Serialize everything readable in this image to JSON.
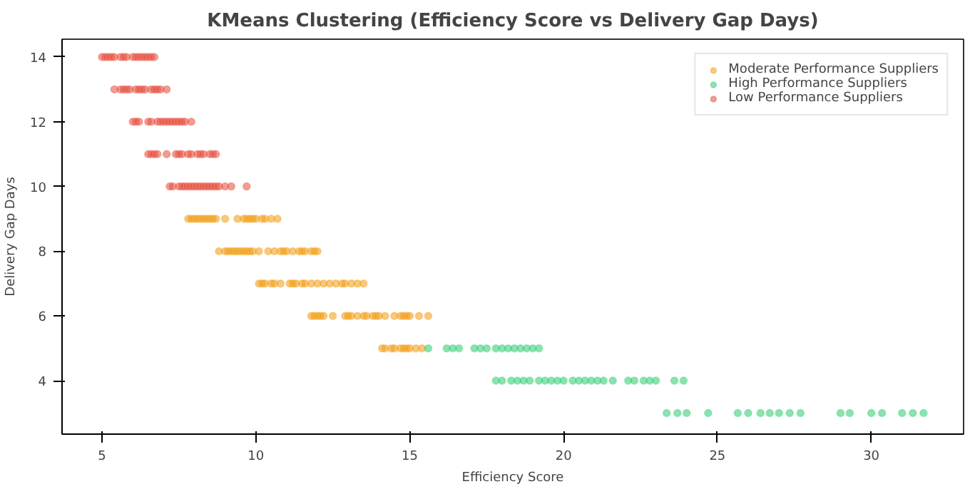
{
  "chart_data": {
    "type": "scatter",
    "title": "KMeans Clustering (Efficiency Score vs Delivery Gap Days)",
    "xlabel": "Efficiency Score",
    "ylabel": "Delivery Gap Days",
    "xlim": [
      3.7,
      33.0
    ],
    "ylim": [
      2.35,
      14.55
    ],
    "xticks": [
      5,
      10,
      15,
      20,
      25,
      30
    ],
    "yticks": [
      4,
      6,
      8,
      10,
      12,
      14
    ],
    "grid": false,
    "legend": "top right",
    "marker": "circle",
    "series": [
      {
        "name": "Moderate Performance Suppliers",
        "color": "#f39c12",
        "x": [
          7.8,
          7.9,
          8.0,
          8.1,
          8.2,
          8.3,
          8.4,
          8.5,
          8.6,
          8.7,
          9.0,
          9.4,
          9.6,
          9.7,
          9.8,
          9.9,
          10.0,
          10.2,
          10.3,
          10.5,
          10.7,
          8.8,
          9.0,
          9.1,
          9.2,
          9.3,
          9.4,
          9.5,
          9.6,
          9.7,
          9.8,
          9.9,
          10.1,
          10.4,
          10.6,
          10.8,
          10.9,
          11.0,
          11.2,
          11.4,
          11.5,
          11.6,
          11.8,
          11.9,
          12.0,
          10.1,
          10.2,
          10.3,
          10.5,
          10.6,
          10.8,
          11.1,
          11.2,
          11.3,
          11.5,
          11.6,
          11.8,
          12.0,
          12.2,
          12.4,
          12.6,
          12.8,
          12.9,
          13.1,
          13.3,
          13.5,
          11.8,
          11.9,
          12.0,
          12.1,
          12.2,
          12.5,
          12.9,
          13.0,
          13.1,
          13.3,
          13.5,
          13.6,
          13.8,
          13.9,
          14.0,
          14.2,
          14.5,
          14.7,
          14.8,
          14.9,
          15.0,
          15.3,
          15.6,
          14.1,
          14.2,
          14.4,
          14.5,
          14.7,
          14.8,
          14.9,
          15.0,
          15.2,
          15.4
        ],
        "values": [
          9,
          9,
          9,
          9,
          9,
          9,
          9,
          9,
          9,
          9,
          9,
          9,
          9,
          9,
          9,
          9,
          9,
          9,
          9,
          9,
          9,
          8,
          8,
          8,
          8,
          8,
          8,
          8,
          8,
          8,
          8,
          8,
          8,
          8,
          8,
          8,
          8,
          8,
          8,
          8,
          8,
          8,
          8,
          8,
          8,
          7,
          7,
          7,
          7,
          7,
          7,
          7,
          7,
          7,
          7,
          7,
          7,
          7,
          7,
          7,
          7,
          7,
          7,
          7,
          7,
          7,
          6,
          6,
          6,
          6,
          6,
          6,
          6,
          6,
          6,
          6,
          6,
          6,
          6,
          6,
          6,
          6,
          6,
          6,
          6,
          6,
          6,
          6,
          6,
          5,
          5,
          5,
          5,
          5,
          5,
          5,
          5,
          5,
          5
        ]
      },
      {
        "name": "High Performance Suppliers",
        "color": "#2ecc71",
        "x": [
          15.6,
          16.2,
          16.4,
          16.6,
          17.1,
          17.3,
          17.5,
          17.8,
          18.0,
          18.2,
          18.4,
          18.6,
          18.8,
          19.0,
          19.2,
          17.8,
          18.0,
          18.3,
          18.5,
          18.7,
          18.9,
          19.2,
          19.4,
          19.6,
          19.8,
          20.0,
          20.3,
          20.5,
          20.7,
          20.9,
          21.1,
          21.3,
          21.6,
          22.1,
          22.3,
          22.6,
          22.8,
          23.0,
          23.6,
          23.9,
          23.35,
          23.7,
          24.0,
          24.7,
          25.66,
          26.0,
          26.4,
          26.7,
          27.0,
          27.35,
          27.7,
          29.0,
          29.3,
          30.0,
          30.35,
          31.0,
          31.35,
          31.7
        ],
        "values": [
          5,
          5,
          5,
          5,
          5,
          5,
          5,
          5,
          5,
          5,
          5,
          5,
          5,
          5,
          5,
          4,
          4,
          4,
          4,
          4,
          4,
          4,
          4,
          4,
          4,
          4,
          4,
          4,
          4,
          4,
          4,
          4,
          4,
          4,
          4,
          4,
          4,
          4,
          4,
          4,
          3,
          3,
          3,
          3,
          3,
          3,
          3,
          3,
          3,
          3,
          3,
          3,
          3,
          3,
          3,
          3,
          3,
          3
        ]
      },
      {
        "name": "Low Performance Suppliers",
        "color": "#e74c3c",
        "x": [
          5.0,
          5.1,
          5.2,
          5.3,
          5.4,
          5.6,
          5.7,
          5.8,
          6.0,
          6.1,
          6.2,
          6.3,
          6.4,
          6.5,
          6.6,
          6.7,
          5.4,
          5.6,
          5.7,
          5.8,
          5.9,
          6.1,
          6.2,
          6.3,
          6.4,
          6.6,
          6.7,
          6.8,
          6.9,
          7.1,
          6.0,
          6.1,
          6.2,
          6.5,
          6.6,
          6.8,
          6.9,
          7.0,
          7.1,
          7.2,
          7.3,
          7.4,
          7.5,
          7.6,
          7.7,
          7.9,
          6.5,
          6.6,
          6.7,
          6.8,
          7.1,
          7.4,
          7.5,
          7.6,
          7.8,
          7.9,
          8.1,
          8.2,
          8.3,
          8.5,
          8.6,
          8.7,
          7.2,
          7.3,
          7.5,
          7.6,
          7.7,
          7.8,
          7.9,
          8.0,
          8.1,
          8.2,
          8.3,
          8.4,
          8.5,
          8.6,
          8.7,
          8.8,
          9.0,
          9.2,
          9.7
        ],
        "values": [
          14,
          14,
          14,
          14,
          14,
          14,
          14,
          14,
          14,
          14,
          14,
          14,
          14,
          14,
          14,
          14,
          13,
          13,
          13,
          13,
          13,
          13,
          13,
          13,
          13,
          13,
          13,
          13,
          13,
          13,
          12,
          12,
          12,
          12,
          12,
          12,
          12,
          12,
          12,
          12,
          12,
          12,
          12,
          12,
          12,
          12,
          11,
          11,
          11,
          11,
          11,
          11,
          11,
          11,
          11,
          11,
          11,
          11,
          11,
          11,
          11,
          11,
          10,
          10,
          10,
          10,
          10,
          10,
          10,
          10,
          10,
          10,
          10,
          10,
          10,
          10,
          10,
          10,
          10,
          10,
          10
        ]
      }
    ]
  }
}
